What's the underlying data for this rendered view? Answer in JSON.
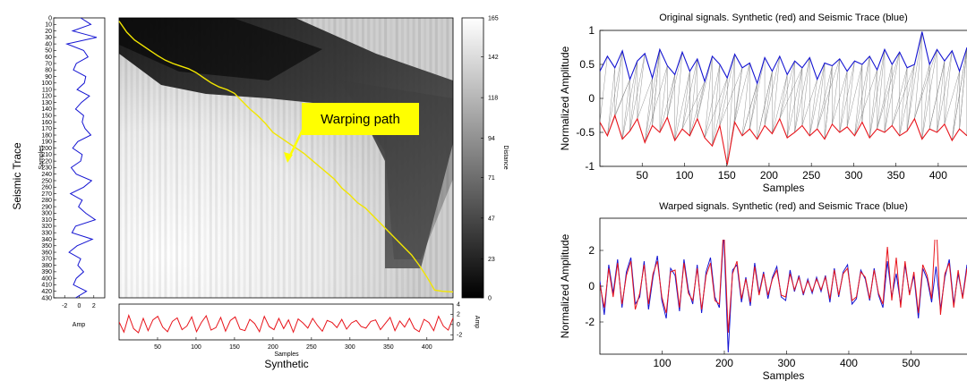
{
  "annotation": {
    "callout_text": "Warping path"
  },
  "colors": {
    "synthetic": "#e8141b",
    "seismic": "#1414d2",
    "path": "#f2e600",
    "callout": "#ffff00",
    "links": "#7a7a7a"
  },
  "chart_data": [
    {
      "id": "seismic-trace-strip",
      "type": "line",
      "orientation": "vertical",
      "title": "",
      "xlabel": "Amp",
      "ylabel": "Samples",
      "outer_label": "Seismic Trace",
      "x_ticks": [
        "-2",
        "0",
        "2"
      ],
      "xlim": [
        -3.5,
        3.5
      ],
      "ylim": [
        0,
        430
      ],
      "y_ticks": [
        "0",
        "10",
        "20",
        "30",
        "40",
        "50",
        "60",
        "70",
        "80",
        "90",
        "100",
        "110",
        "120",
        "130",
        "140",
        "150",
        "160",
        "170",
        "180",
        "190",
        "200",
        "210",
        "220",
        "230",
        "240",
        "250",
        "260",
        "270",
        "280",
        "290",
        "300",
        "310",
        "320",
        "330",
        "340",
        "350",
        "360",
        "370",
        "380",
        "390",
        "400",
        "410",
        "420",
        "430"
      ],
      "series": [
        {
          "color": "#1414d2",
          "values": [
            0.2,
            1.6,
            -0.9,
            2.4,
            -1.7,
            0.6,
            1.2,
            -0.4,
            -0.8,
            0.9,
            0.7,
            -0.3,
            1.4,
            0.3,
            -0.5,
            0.6,
            0.4,
            0.8,
            1.6,
            -0.2,
            -0.9,
            0.4,
            0.2,
            -1.1,
            -0.4,
            1.7,
            0.6,
            -1.2,
            0.4,
            -0.1,
            0.9,
            2.2,
            -0.5,
            -1.0,
            1.8,
            -0.3,
            -1.4,
            0.2,
            -0.2,
            0.6,
            -0.4,
            -0.8,
            1.0,
            -0.5
          ]
        }
      ]
    },
    {
      "id": "distance-matrix",
      "type": "heatmap",
      "title": "",
      "xlabel": "Samples",
      "outer_label": "Synthetic",
      "colorbar_label": "Distance",
      "colorbar_ticks": [
        "0",
        "23",
        "47",
        "71",
        "94",
        "118",
        "142",
        "165"
      ],
      "clim": [
        0,
        165
      ],
      "colormap": "gray",
      "x_ticks": [
        "50",
        "100",
        "150",
        "200",
        "250",
        "300",
        "350",
        "400"
      ],
      "xlim": [
        0,
        434
      ],
      "ylim": [
        0,
        430
      ],
      "warping_path": {
        "x": [
          0,
          10,
          20,
          30,
          40,
          50,
          60,
          70,
          80,
          90,
          100,
          110,
          120,
          130,
          140,
          150,
          160,
          170,
          180,
          190,
          200,
          210,
          220,
          230,
          240,
          250,
          260,
          270,
          280,
          290,
          300,
          310,
          320,
          330,
          340,
          350,
          360,
          370,
          380,
          390,
          400,
          410,
          420,
          434
        ],
        "y": [
          5,
          22,
          34,
          42,
          50,
          58,
          65,
          70,
          74,
          78,
          84,
          92,
          100,
          106,
          110,
          116,
          128,
          140,
          150,
          162,
          176,
          184,
          192,
          200,
          208,
          218,
          228,
          238,
          248,
          262,
          272,
          284,
          292,
          304,
          316,
          328,
          340,
          352,
          364,
          380,
          398,
          418,
          420,
          421
        ]
      }
    },
    {
      "id": "synthetic-strip",
      "type": "line",
      "title": "",
      "xlabel": "Samples",
      "ylabel": "Amp",
      "y_ticks": [
        "-2",
        "0",
        "2",
        "4"
      ],
      "ylim": [
        -3,
        4
      ],
      "xlim": [
        0,
        434
      ],
      "x_ticks": [
        "50",
        "100",
        "150",
        "200",
        "250",
        "300",
        "350",
        "400"
      ],
      "series": [
        {
          "color": "#e8141b",
          "values": [
            0.5,
            -1.5,
            1.8,
            -0.8,
            -1.6,
            1.2,
            -1.2,
            0.9,
            1.6,
            -0.5,
            -1.4,
            0.6,
            1.3,
            -1.0,
            -0.3,
            1.5,
            -1.4,
            0.4,
            1.7,
            -1.1,
            -0.6,
            1.4,
            -1.3,
            0.8,
            1.5,
            -0.9,
            -1.2,
            1.0,
            0.2,
            -1.4,
            1.6,
            -0.4,
            -1.0,
            1.2,
            -0.8,
            0.9,
            -1.5,
            1.1,
            0.3,
            -0.7,
            1.2,
            -0.2,
            -1.3,
            0.8,
            0.4,
            -0.6,
            1.0,
            -0.9,
            0.3,
            0.8,
            -0.4,
            -0.7,
            0.6,
            0.9,
            -1.0,
            0.2,
            1.4,
            -1.2,
            0.7,
            -0.5,
            1.2,
            -0.8,
            -1.4,
            1.0,
            0.4,
            -1.2,
            1.6,
            -0.3,
            -1.1,
            1.3
          ]
        }
      ]
    },
    {
      "id": "original-signals",
      "type": "line",
      "title": "Original signals. Synthetic (red) and Seismic Trace (blue)",
      "xlabel": "Samples",
      "ylabel": "Normalized Amplitude",
      "xlim": [
        0,
        434
      ],
      "ylim": [
        -1,
        1
      ],
      "x_ticks": [
        "50",
        "100",
        "150",
        "200",
        "250",
        "300",
        "350",
        "400"
      ],
      "y_ticks": [
        "-1",
        "-0.5",
        "0",
        "0.5",
        "1"
      ],
      "series": [
        {
          "name": "Seismic Trace",
          "color": "#1414d2",
          "values": [
            0.4,
            0.62,
            0.45,
            0.7,
            0.28,
            0.55,
            0.66,
            0.3,
            0.72,
            0.48,
            0.35,
            0.68,
            0.4,
            0.58,
            0.25,
            0.62,
            0.5,
            0.3,
            0.65,
            0.45,
            0.52,
            0.22,
            0.6,
            0.4,
            0.62,
            0.35,
            0.55,
            0.45,
            0.6,
            0.28,
            0.52,
            0.48,
            0.58,
            0.4,
            0.55,
            0.5,
            0.62,
            0.42,
            0.72,
            0.5,
            0.68,
            0.45,
            0.5,
            0.98,
            0.5,
            0.72,
            0.55,
            0.7,
            0.4,
            0.75
          ]
        },
        {
          "name": "Synthetic",
          "color": "#e8141b",
          "values": [
            -0.35,
            -0.55,
            -0.25,
            -0.6,
            -0.48,
            -0.3,
            -0.65,
            -0.4,
            -0.5,
            -0.28,
            -0.62,
            -0.45,
            -0.55,
            -0.3,
            -0.58,
            -0.7,
            -0.4,
            -0.98,
            -0.35,
            -0.55,
            -0.45,
            -0.6,
            -0.4,
            -0.52,
            -0.3,
            -0.58,
            -0.5,
            -0.4,
            -0.55,
            -0.45,
            -0.6,
            -0.38,
            -0.5,
            -0.42,
            -0.55,
            -0.35,
            -0.58,
            -0.45,
            -0.5,
            -0.4,
            -0.55,
            -0.48,
            -0.3,
            -0.6,
            -0.45,
            -0.5,
            -0.38,
            -0.62,
            -0.45,
            -0.55
          ]
        }
      ]
    },
    {
      "id": "warped-signals",
      "type": "line",
      "title": "Warped signals. Synthetic (red) and Seismic Trace (blue)",
      "xlabel": "Samples",
      "ylabel": "Normalized Amplitude",
      "xlim": [
        0,
        590
      ],
      "ylim": [
        -3.8,
        3.8
      ],
      "x_ticks": [
        "100",
        "200",
        "300",
        "400",
        "500"
      ],
      "y_ticks": [
        "-2",
        "0",
        "2"
      ],
      "series": [
        {
          "name": "Seismic Trace",
          "color": "#1414d2",
          "values": [
            0.3,
            -1.6,
            1.2,
            -0.4,
            1.5,
            -1.2,
            0.8,
            1.6,
            -1.0,
            -0.6,
            1.4,
            -1.3,
            0.5,
            1.7,
            -0.8,
            -1.8,
            1.0,
            0.6,
            -1.4,
            1.5,
            -0.2,
            -1.0,
            1.2,
            -1.5,
            0.8,
            1.6,
            -0.6,
            -1.2,
            3.0,
            -3.7,
            0.9,
            1.2,
            -0.9,
            0.5,
            -1.1,
            1.3,
            -0.4,
            0.8,
            -0.7,
            0.5,
            1.1,
            -0.6,
            -0.8,
            0.9,
            -0.3,
            0.6,
            -0.5,
            0.4,
            -0.4,
            0.5,
            -0.3,
            0.6,
            -0.9,
            1.0,
            -0.6,
            0.8,
            1.2,
            -1.0,
            -0.7,
            0.9,
            0.4,
            -0.8,
            1.0,
            -0.5,
            -1.2,
            1.4,
            -0.6,
            0.7,
            -1.0,
            1.2,
            -0.4,
            0.6,
            -1.8,
            1.0,
            0.4,
            -0.9,
            1.1,
            -1.3,
            0.5,
            1.5,
            -1.0,
            0.7,
            -0.6,
            1.2
          ]
        },
        {
          "name": "Synthetic",
          "color": "#e8141b",
          "values": [
            0.1,
            -1.2,
            1.0,
            -0.6,
            1.3,
            -1.0,
            0.6,
            1.4,
            -1.3,
            -0.4,
            1.2,
            -1.0,
            0.7,
            1.4,
            -0.6,
            -1.5,
            0.8,
            0.9,
            -1.2,
            1.3,
            -0.4,
            -0.8,
            1.0,
            -1.3,
            0.6,
            1.3,
            -0.8,
            -1.0,
            3.4,
            -2.6,
            0.7,
            1.4,
            -0.7,
            0.4,
            -0.9,
            1.1,
            -0.5,
            0.7,
            -0.5,
            0.4,
            0.9,
            -0.5,
            -0.6,
            0.7,
            -0.2,
            0.5,
            -0.4,
            0.3,
            -0.3,
            0.4,
            -0.2,
            0.5,
            -0.7,
            0.9,
            -0.5,
            0.7,
            1.0,
            -0.8,
            -0.6,
            0.8,
            0.5,
            -0.7,
            0.9,
            -0.4,
            -1.0,
            2.2,
            -0.8,
            1.6,
            -1.2,
            1.4,
            -0.5,
            0.8,
            -1.5,
            1.2,
            0.6,
            -0.7,
            3.8,
            -1.6,
            0.7,
            1.3,
            -1.2,
            0.9,
            -0.7,
            1.0
          ]
        }
      ]
    }
  ]
}
